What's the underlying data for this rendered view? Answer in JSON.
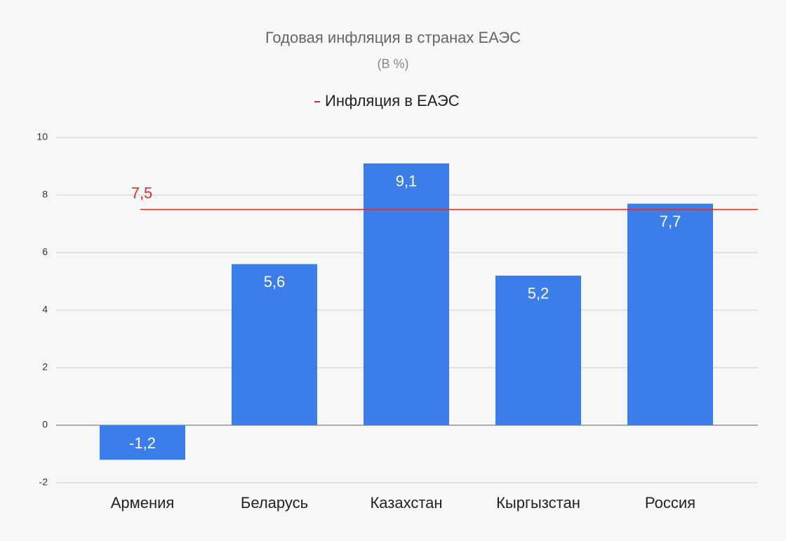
{
  "chart_data": {
    "type": "bar",
    "title": "Годовая инфляция в странах ЕАЭС",
    "subtitle": "(В %)",
    "categories": [
      "Армения",
      "Беларусь",
      "Казахстан",
      "Кыргызстан",
      "Россия"
    ],
    "values": [
      -1.2,
      5.6,
      9.1,
      5.2,
      7.7
    ],
    "value_labels": [
      "-1,2",
      "5,6",
      "9,1",
      "5,2",
      "7,7"
    ],
    "color": "#3b7de9",
    "reference_line": {
      "name": "Инфляция в ЕАЭС",
      "value": 7.5,
      "value_label": "7,5",
      "color": "#d93025"
    },
    "ylim": [
      -2,
      10
    ],
    "yticks": [
      -2,
      0,
      2,
      4,
      6,
      8,
      10
    ],
    "grid": true
  }
}
